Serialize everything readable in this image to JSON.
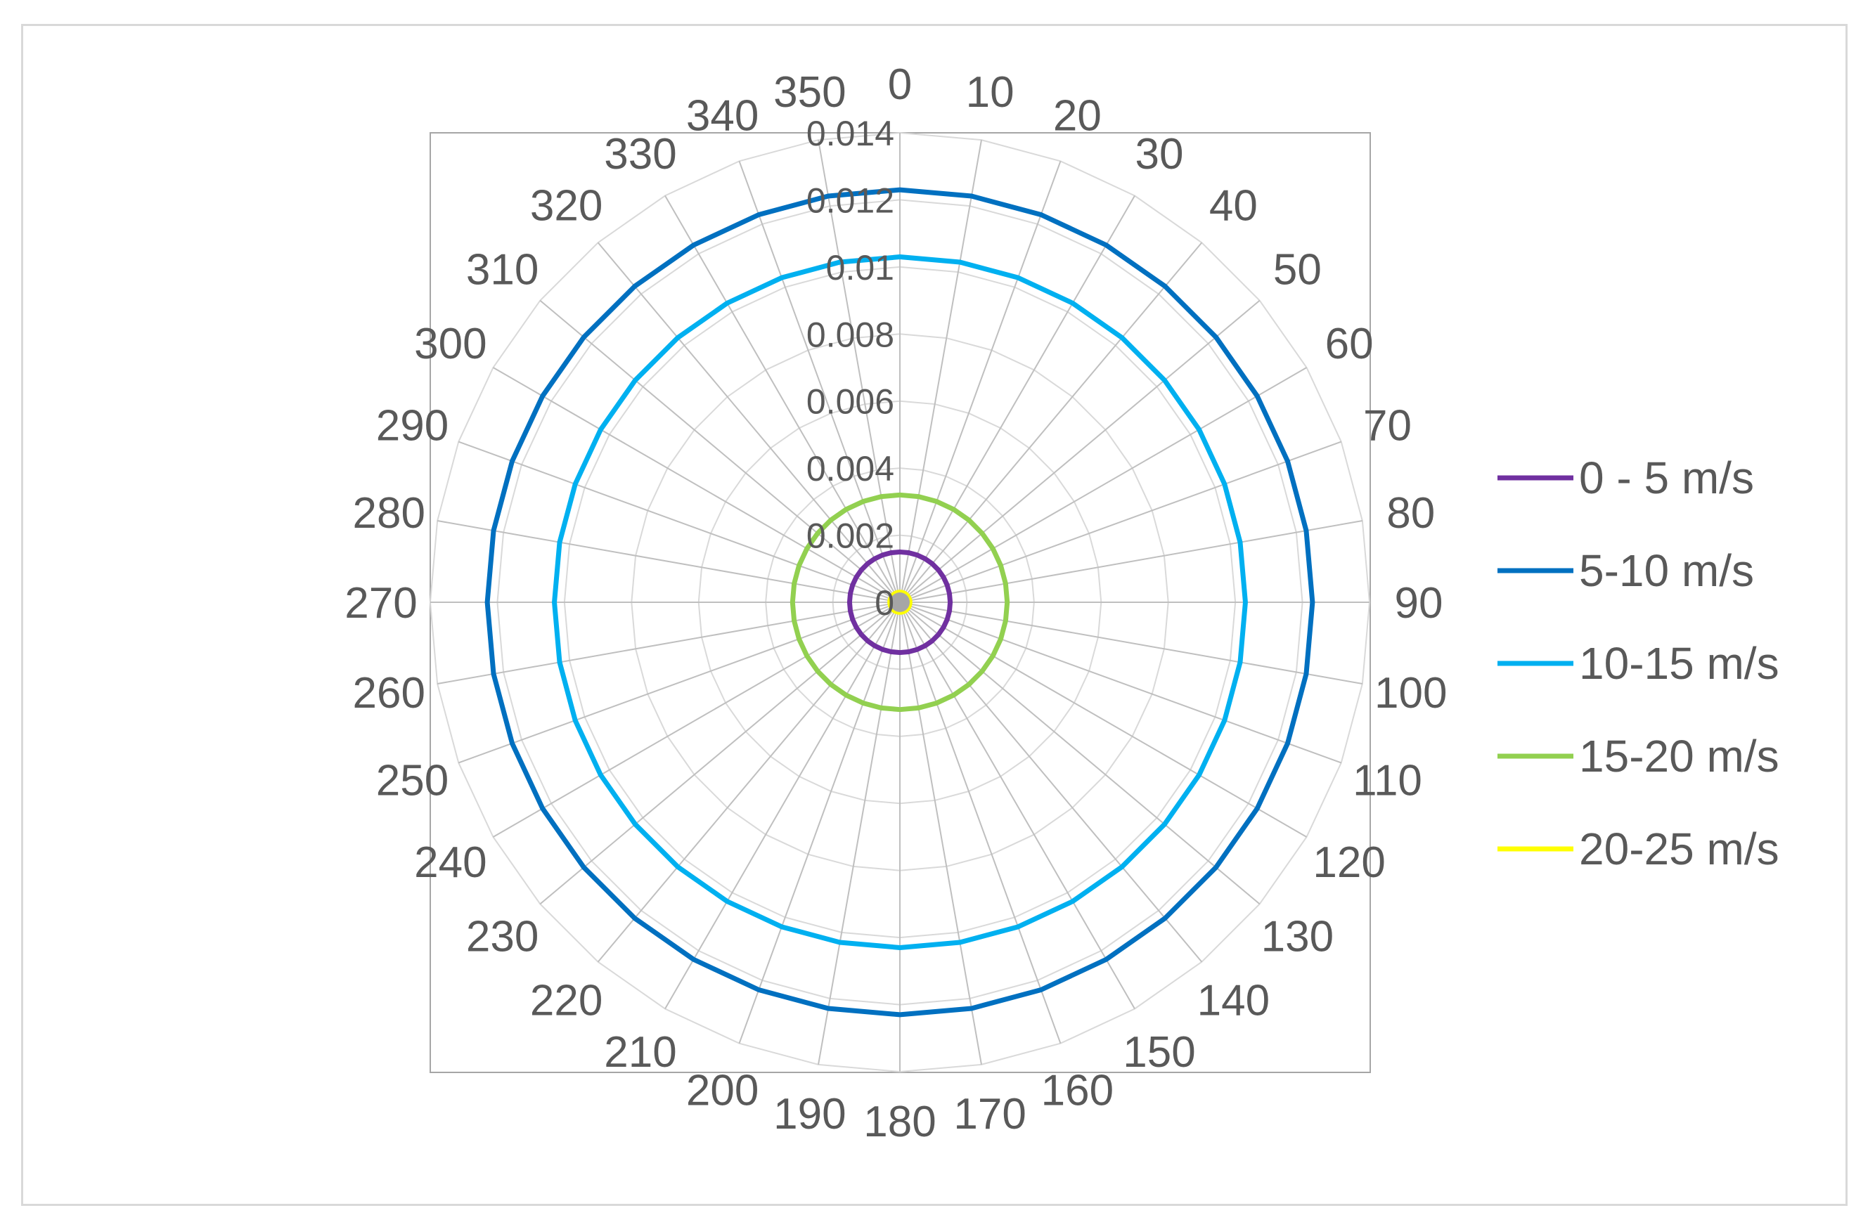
{
  "chart_data": {
    "type": "radar",
    "categories": [
      "0",
      "10",
      "20",
      "30",
      "40",
      "50",
      "60",
      "70",
      "80",
      "90",
      "100",
      "110",
      "120",
      "130",
      "140",
      "150",
      "160",
      "170",
      "180",
      "190",
      "200",
      "210",
      "220",
      "230",
      "240",
      "250",
      "260",
      "270",
      "280",
      "290",
      "300",
      "310",
      "320",
      "330",
      "340",
      "350"
    ],
    "radial_ticks": [
      "0",
      "0.002",
      "0.004",
      "0.006",
      "0.008",
      "0.01",
      "0.012",
      "0.014"
    ],
    "rlim": [
      0,
      0.014
    ],
    "grid": true,
    "legend_position": "right",
    "series": [
      {
        "name": "0 - 5 m/s",
        "color": "#7030a0",
        "value": 0.0015
      },
      {
        "name": "5-10 m/s",
        "color": "#0070c0",
        "value": 0.0123
      },
      {
        "name": "10-15 m/s",
        "color": "#00b0f0",
        "value": 0.0103
      },
      {
        "name": "15-20 m/s",
        "color": "#92d050",
        "value": 0.0032
      },
      {
        "name": "20-25 m/s",
        "color": "#ffff00",
        "value": 0.0003
      }
    ]
  }
}
